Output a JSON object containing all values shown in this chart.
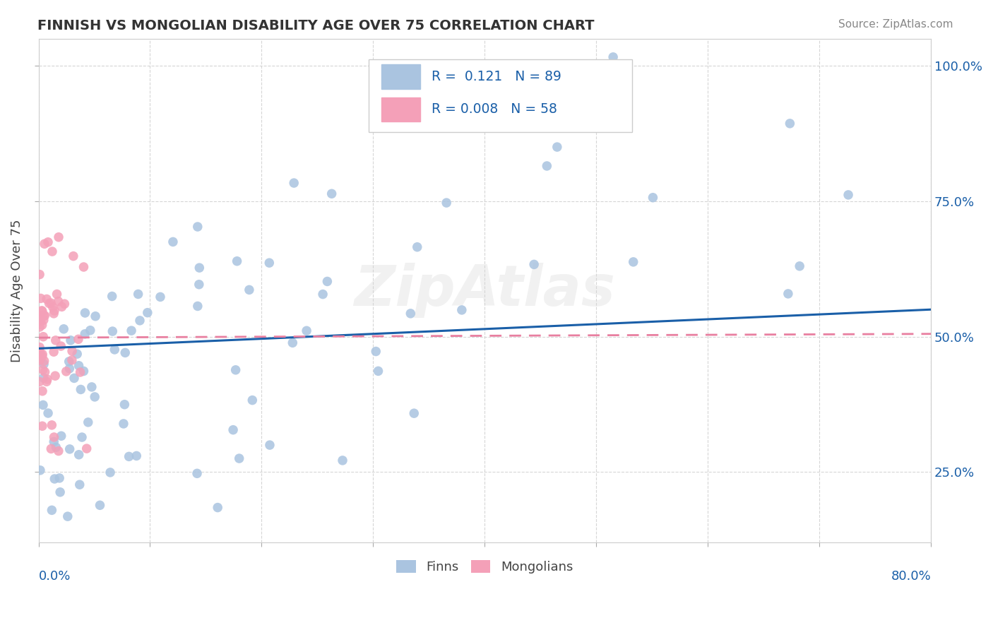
{
  "title": "FINNISH VS MONGOLIAN DISABILITY AGE OVER 75 CORRELATION CHART",
  "source": "Source: ZipAtlas.com",
  "ylabel": "Disability Age Over 75",
  "yticks": [
    0.25,
    0.5,
    0.75,
    1.0
  ],
  "ytick_labels": [
    "25.0%",
    "50.0%",
    "75.0%",
    "100.0%"
  ],
  "xlim": [
    0.0,
    0.8
  ],
  "ylim": [
    0.12,
    1.05
  ],
  "finns_R": 0.121,
  "finns_N": 89,
  "mongolians_R": 0.008,
  "mongolians_N": 58,
  "finns_color": "#aac4e0",
  "mongolians_color": "#f4a0b8",
  "finns_line_color": "#1a5fa8",
  "mongolians_line_color": "#e87fa0",
  "background_color": "#ffffff",
  "grid_color": "#cccccc",
  "title_color": "#333333",
  "axis_label_color": "#1a5fa8",
  "watermark": "ZipAtlas",
  "legend_text_color": "#1a5fa8"
}
